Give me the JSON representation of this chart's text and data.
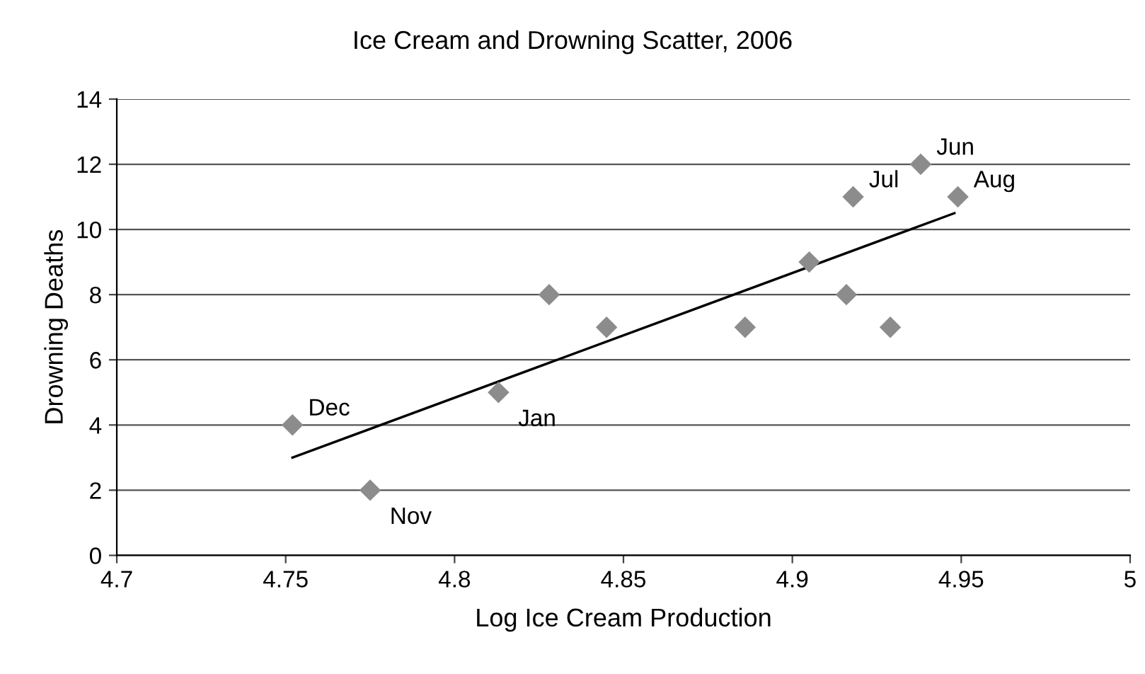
{
  "chart_data": {
    "type": "scatter",
    "title": "Ice Cream and Drowning Scatter, 2006",
    "xlabel": "Log Ice Cream Production",
    "ylabel": "Drowning Deaths",
    "series": [
      {
        "color": "#8c8c8c",
        "marker": "diamond",
        "x": [
          4.752,
          4.775,
          4.813,
          4.828,
          4.845,
          4.886,
          4.905,
          4.916,
          4.918,
          4.929,
          4.938,
          4.949
        ],
        "values": [
          4,
          2,
          5,
          8,
          7,
          7,
          9,
          8,
          11,
          7,
          12,
          11
        ]
      },
      {
        "type": "line",
        "color": "#000000",
        "marker": "none",
        "x": [
          4.752,
          4.948
        ],
        "values": [
          3.0,
          10.5
        ]
      }
    ],
    "annotations": [
      {
        "text": "Dec",
        "x": 4.752,
        "y": 4
      },
      {
        "text": "Nov",
        "x": 4.775,
        "y": 2
      },
      {
        "text": "Jan",
        "x": 4.813,
        "y": 5
      },
      {
        "text": "Jul",
        "x": 4.918,
        "y": 11
      },
      {
        "text": "Jun",
        "x": 4.938,
        "y": 12
      },
      {
        "text": "Aug",
        "x": 4.949,
        "y": 11
      }
    ],
    "xlim": [
      4.7,
      5
    ],
    "xticks": [
      4.7,
      4.75,
      4.8,
      4.85,
      4.9,
      4.95,
      5
    ],
    "ylim": [
      0,
      14
    ],
    "yticks": [
      0,
      2,
      4,
      6,
      8,
      10,
      12,
      14
    ],
    "grid": "y"
  }
}
